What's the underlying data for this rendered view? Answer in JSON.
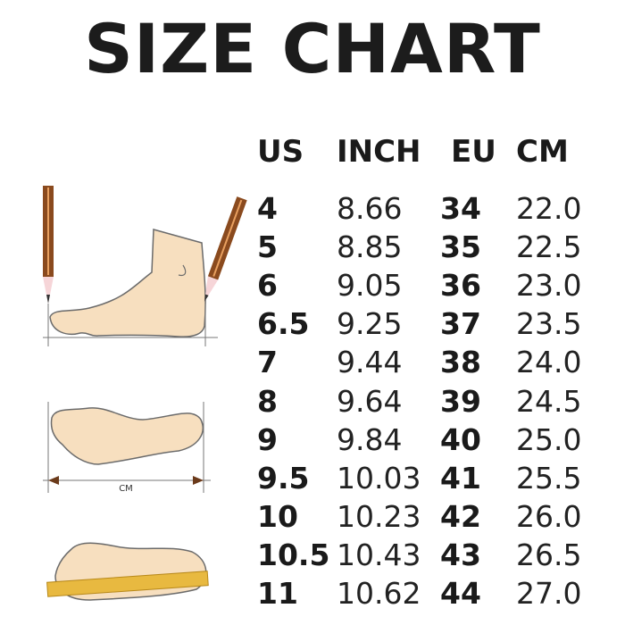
{
  "title": "SIZE CHART",
  "headers": [
    "US",
    "INCH",
    "EU",
    "CM"
  ],
  "rows": [
    [
      "4",
      "8.66",
      "34",
      "22.0"
    ],
    [
      "5",
      "8.85",
      "35",
      "22.5"
    ],
    [
      "6",
      "9.05",
      "36",
      "23.0"
    ],
    [
      "6.5",
      "9.25",
      "37",
      "23.5"
    ],
    [
      "7",
      "9.44",
      "38",
      "24.0"
    ],
    [
      "8",
      "9.64",
      "39",
      "24.5"
    ],
    [
      "9",
      "9.84",
      "40",
      "25.0"
    ],
    [
      "9.5",
      "10.03",
      "41",
      "25.5"
    ],
    [
      "10",
      "10.23",
      "42",
      "26.0"
    ],
    [
      "10.5",
      "10.43",
      "43",
      "26.5"
    ],
    [
      "11",
      "10.62",
      "44",
      "27.0"
    ]
  ],
  "illustration": {
    "measure_label": "CM"
  },
  "colors": {
    "skin": "#f7dfbf",
    "outline": "#6b6b6b",
    "pencil": "#8a4a1e",
    "ruler": "#e8b940"
  }
}
